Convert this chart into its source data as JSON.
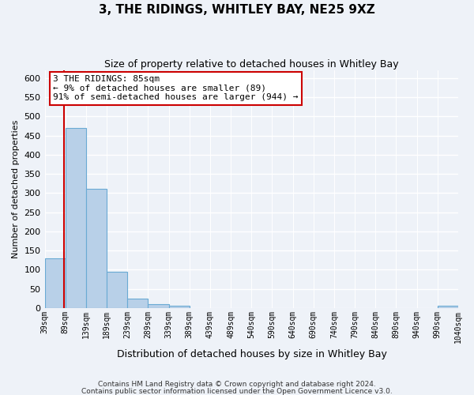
{
  "title": "3, THE RIDINGS, WHITLEY BAY, NE25 9XZ",
  "subtitle": "Size of property relative to detached houses in Whitley Bay",
  "xlabel": "Distribution of detached houses by size in Whitley Bay",
  "ylabel": "Number of detached properties",
  "bar_values": [
    130,
    470,
    310,
    95,
    25,
    10,
    5,
    0,
    0,
    0,
    0,
    0,
    0,
    0,
    0,
    0,
    0,
    0,
    0,
    5
  ],
  "bin_labels": [
    "39sqm",
    "89sqm",
    "139sqm",
    "189sqm",
    "239sqm",
    "289sqm",
    "339sqm",
    "389sqm",
    "439sqm",
    "489sqm",
    "540sqm",
    "590sqm",
    "640sqm",
    "690sqm",
    "740sqm",
    "790sqm",
    "840sqm",
    "890sqm",
    "940sqm",
    "990sqm",
    "1040sqm"
  ],
  "bar_color": "#b8d0e8",
  "bar_edge_color": "#6aaad4",
  "ylim": [
    0,
    620
  ],
  "yticks": [
    0,
    50,
    100,
    150,
    200,
    250,
    300,
    350,
    400,
    450,
    500,
    550,
    600
  ],
  "property_line_color": "#cc0000",
  "property_line_x": 85,
  "annotation_title": "3 THE RIDINGS: 85sqm",
  "annotation_line1": "← 9% of detached houses are smaller (89)",
  "annotation_line2": "91% of semi-detached houses are larger (944) →",
  "annotation_box_color": "#ffffff",
  "annotation_box_edge": "#cc0000",
  "footer1": "Contains HM Land Registry data © Crown copyright and database right 2024.",
  "footer2": "Contains public sector information licensed under the Open Government Licence v3.0.",
  "bg_color": "#eef2f8"
}
